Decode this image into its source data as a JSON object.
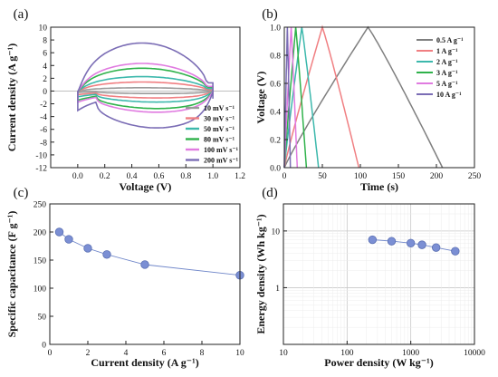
{
  "chart_data": [
    {
      "panel": "(a)",
      "type": "line",
      "xlabel": "Voltage (V)",
      "ylabel": "Current density (A g⁻¹)",
      "xlim": [
        -0.2,
        1.2
      ],
      "ylim": [
        -12,
        10
      ],
      "xticks": [
        "0.0",
        "0.2",
        "0.4",
        "0.6",
        "0.8",
        "1.0",
        "1.2"
      ],
      "yticks": [
        "-12",
        "-10",
        "-8",
        "-6",
        "-4",
        "-2",
        "0",
        "2",
        "4",
        "6",
        "8",
        "10"
      ],
      "legend_position": "bottom-right",
      "series": [
        {
          "name": "10 mV s⁻¹",
          "color": "#9a9a9a",
          "amp": 0.55
        },
        {
          "name": "30 mV s⁻¹",
          "color": "#f07f82",
          "amp": 1.5
        },
        {
          "name": "50 mV s⁻¹",
          "color": "#3cb8ac",
          "amp": 2.4
        },
        {
          "name": "80 mV s⁻¹",
          "color": "#2fb24b",
          "amp": 3.8
        },
        {
          "name": "100 mV s⁻¹",
          "color": "#e07be0",
          "amp": 4.6
        },
        {
          "name": "200 mV s⁻¹",
          "color": "#7b6db5",
          "amp": 8.0
        }
      ]
    },
    {
      "panel": "(b)",
      "type": "line",
      "xlabel": "Time (s)",
      "ylabel": "Voltage (V)",
      "xlim": [
        0,
        250
      ],
      "ylim": [
        0,
        1.0
      ],
      "xticks": [
        "0",
        "50",
        "100",
        "150",
        "200",
        "250"
      ],
      "yticks": [
        "0.0",
        "0.2",
        "0.4",
        "0.6",
        "0.8",
        "1.0"
      ],
      "legend_position": "right",
      "series": [
        {
          "name": "0.5 A g⁻¹",
          "color": "#7f7f7f",
          "charge_end": 110,
          "discharge_end": 208
        },
        {
          "name": "1 A g⁻¹",
          "color": "#f07f82",
          "charge_end": 50,
          "discharge_end": 98
        },
        {
          "name": "2 A g⁻¹",
          "color": "#3cb8ac",
          "charge_end": 23,
          "discharge_end": 45
        },
        {
          "name": "3 A g⁻¹",
          "color": "#2fb24b",
          "charge_end": 15,
          "discharge_end": 29
        },
        {
          "name": "5 A g⁻¹",
          "color": "#e07be0",
          "charge_end": 9,
          "discharge_end": 17
        },
        {
          "name": "10 A g⁻¹",
          "color": "#7b6db5",
          "charge_end": 4,
          "discharge_end": 8
        }
      ]
    },
    {
      "panel": "(c)",
      "type": "line",
      "xlabel": "Current density (A g⁻¹)",
      "ylabel": "Specific capacitance (F g⁻¹)",
      "xlim": [
        0,
        10
      ],
      "ylim": [
        0,
        250
      ],
      "xticks": [
        "0",
        "2",
        "4",
        "6",
        "8",
        "10"
      ],
      "yticks": [
        "0",
        "50",
        "100",
        "150",
        "200",
        "250"
      ],
      "color": "#7b8fd4",
      "x": [
        0.5,
        1,
        2,
        3,
        5,
        10
      ],
      "y": [
        200,
        187,
        171,
        160,
        142,
        123
      ]
    },
    {
      "panel": "(d)",
      "type": "scatter",
      "xlabel": "Power density (W kg⁻¹)",
      "ylabel": "Energy density (Wh kg⁻¹)",
      "xscale": "log",
      "yscale": "log",
      "xlim": [
        10,
        10000
      ],
      "ylim": [
        0.1,
        30
      ],
      "xticks": [
        "10",
        "100",
        "1000",
        "10000"
      ],
      "yticks": [
        "1",
        "10"
      ],
      "grid": true,
      "color": "#7b8fd4",
      "x": [
        250,
        500,
        1000,
        1500,
        2500,
        5000
      ],
      "y": [
        7.0,
        6.6,
        6.1,
        5.7,
        5.1,
        4.4
      ]
    }
  ]
}
